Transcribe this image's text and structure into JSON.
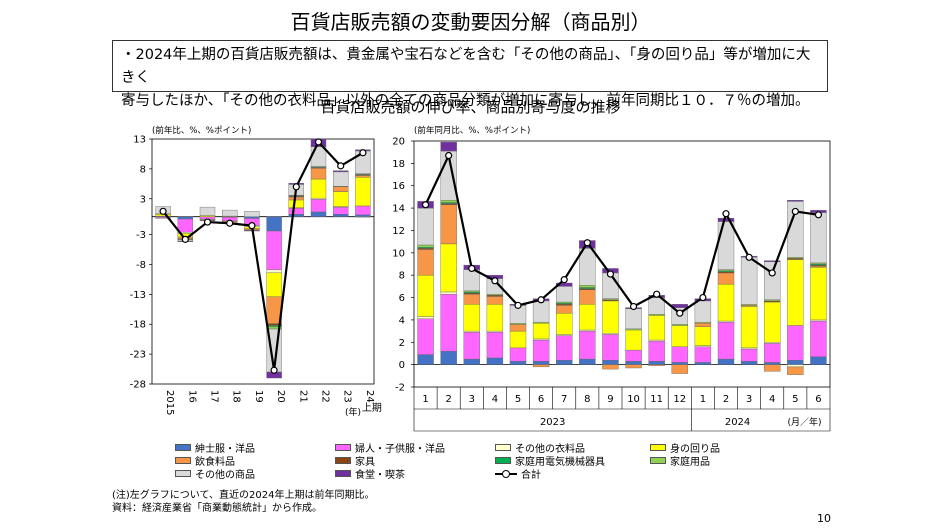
{
  "title": "百貨店販売額の変動要因分解（商品別）",
  "summary": {
    "line1": "・2024年上期の百貨店販売額は、貴金属や宝石などを含む「その他の商品」、「身の回り品」等が増加に大きく",
    "line2": "寄与したほか、「その他の衣料品」以外の全ての商品分類が増加に寄与し、前年同期比１０．７％の増加。"
  },
  "subtitle": "百貨店販売額の伸び率、商品別寄与度の推移",
  "colors": {
    "紳士服・洋品": "#4472c4",
    "婦人・子供服・洋品": "#ff66ff",
    "その他の衣料品": "#ffffcc",
    "身の回り品": "#ffff00",
    "飲食料品": "#f79646",
    "家具": "#8b4513",
    "家庭用電気機械器具": "#00b050",
    "家庭用品": "#92d050",
    "その他の商品": "#d9d9d9",
    "食堂・喫茶": "#7030a0"
  },
  "chart_data": [
    {
      "type": "bar",
      "stacked": true,
      "unit_label": "(前年比、%、%ポイント)",
      "ylim": [
        -28,
        13
      ],
      "yticks": [
        13,
        8,
        3,
        -3,
        -8,
        -13,
        -18,
        -23,
        -28
      ],
      "categories": [
        "2015",
        "16",
        "17",
        "18",
        "19",
        "20",
        "21",
        "22",
        "23",
        "24\n上期"
      ],
      "x_unit": "(年)",
      "series": [
        {
          "name": "紳士服・洋品",
          "values": [
            0.1,
            -0.4,
            0.0,
            -0.1,
            -0.3,
            -2.4,
            0.4,
            0.8,
            0.4,
            0.3
          ]
        },
        {
          "name": "婦人・子供服・洋品",
          "values": [
            -0.2,
            -2.2,
            -0.4,
            -0.6,
            -1.2,
            -6.5,
            1.0,
            2.1,
            1.2,
            1.5
          ]
        },
        {
          "name": "その他の衣料品",
          "values": [
            -0.1,
            -0.2,
            -0.1,
            -0.1,
            -0.2,
            -0.5,
            0.1,
            0.2,
            0.1,
            -0.1
          ]
        },
        {
          "name": "身の回り品",
          "values": [
            0.3,
            -0.6,
            0.2,
            0.1,
            -0.3,
            -4.0,
            1.3,
            3.2,
            2.5,
            4.8
          ]
        },
        {
          "name": "飲食料品",
          "values": [
            0.1,
            -0.3,
            -0.1,
            -0.3,
            -0.2,
            -4.5,
            0.5,
            1.8,
            0.8,
            0.3
          ]
        },
        {
          "name": "家具",
          "values": [
            0.0,
            -0.1,
            0.0,
            0.0,
            0.0,
            -0.3,
            0.1,
            0.1,
            0.0,
            0.1
          ]
        },
        {
          "name": "家庭用電気機械器具",
          "values": [
            0.0,
            0.0,
            0.0,
            0.0,
            0.0,
            -0.2,
            0.1,
            0.1,
            0.0,
            0.1
          ]
        },
        {
          "name": "家庭用品",
          "values": [
            0.0,
            -0.1,
            0.0,
            0.0,
            -0.1,
            -0.4,
            0.1,
            0.1,
            0.1,
            0.1
          ]
        },
        {
          "name": "その他の商品",
          "values": [
            1.2,
            -0.2,
            1.4,
            1.0,
            0.9,
            -7.2,
            1.8,
            3.3,
            2.4,
            3.8
          ]
        },
        {
          "name": "食堂・喫茶",
          "values": [
            0.0,
            -0.1,
            -0.1,
            0.0,
            -0.1,
            -1.0,
            0.2,
            1.3,
            0.2,
            0.2
          ]
        }
      ],
      "total": {
        "name": "合計",
        "values": [
          0.9,
          -3.8,
          -0.9,
          -1.1,
          -1.5,
          -25.7,
          5.0,
          12.5,
          8.5,
          10.7
        ]
      }
    },
    {
      "type": "bar",
      "stacked": true,
      "unit_label": "(前年同月比、%、%ポイント)",
      "ylim": [
        -2,
        20
      ],
      "yticks": [
        20,
        18,
        16,
        14,
        12,
        10,
        8,
        6,
        4,
        2,
        0,
        -2
      ],
      "categories": [
        "1",
        "2",
        "3",
        "4",
        "5",
        "6",
        "7",
        "8",
        "9",
        "10",
        "11",
        "12",
        "1",
        "2",
        "3",
        "4",
        "5",
        "6"
      ],
      "year_labels": [
        "2023",
        "2024"
      ],
      "month_unit": "(月／年)",
      "series": [
        {
          "name": "紳士服・洋品",
          "values": [
            0.9,
            1.2,
            0.5,
            0.6,
            0.3,
            0.3,
            0.4,
            0.5,
            0.4,
            0.3,
            0.3,
            0.2,
            0.2,
            0.5,
            0.3,
            0.2,
            0.4,
            0.7
          ]
        },
        {
          "name": "婦人・子供服・洋品",
          "values": [
            3.2,
            5.1,
            2.4,
            2.3,
            1.2,
            1.9,
            2.2,
            2.5,
            2.3,
            1.0,
            1.8,
            1.4,
            1.4,
            3.3,
            1.1,
            1.7,
            3.1,
            3.2
          ]
        },
        {
          "name": "その他の衣料品",
          "values": [
            0.2,
            0.2,
            0.1,
            0.1,
            0.0,
            0.1,
            0.1,
            0.1,
            0.1,
            0.0,
            0.1,
            0.0,
            0.1,
            0.1,
            0.1,
            0.1,
            -0.2,
            0.1
          ]
        },
        {
          "name": "身の回り品",
          "values": [
            3.7,
            4.3,
            2.4,
            2.4,
            1.5,
            1.4,
            1.9,
            2.3,
            2.9,
            1.8,
            2.2,
            1.9,
            1.7,
            3.3,
            3.7,
            3.6,
            5.9,
            4.7
          ]
        },
        {
          "name": "飲食料品",
          "values": [
            2.3,
            3.5,
            0.9,
            0.7,
            0.6,
            -0.2,
            0.7,
            1.3,
            -0.4,
            -0.3,
            -0.1,
            -0.8,
            0.3,
            1.0,
            0.1,
            -0.6,
            -0.7,
            0.1
          ]
        },
        {
          "name": "家具",
          "values": [
            0.1,
            0.1,
            0.1,
            0.1,
            0.0,
            0.0,
            0.1,
            0.1,
            0.1,
            0.0,
            0.0,
            0.0,
            0.0,
            0.1,
            0.0,
            0.1,
            0.1,
            0.1
          ]
        },
        {
          "name": "家庭用電気機械器具",
          "values": [
            0.1,
            0.1,
            0.1,
            0.0,
            0.0,
            0.0,
            0.1,
            0.1,
            0.0,
            0.0,
            0.0,
            0.0,
            0.0,
            0.1,
            0.0,
            0.0,
            0.0,
            0.1
          ]
        },
        {
          "name": "家庭用品",
          "values": [
            0.2,
            0.2,
            0.1,
            0.1,
            0.1,
            0.1,
            0.1,
            0.2,
            0.1,
            0.1,
            0.1,
            0.1,
            0.1,
            0.1,
            0.1,
            0.1,
            0.1,
            0.1
          ]
        },
        {
          "name": "その他の商品",
          "values": [
            3.3,
            4.4,
            1.9,
            1.4,
            1.6,
            1.9,
            1.4,
            3.3,
            2.3,
            1.8,
            1.5,
            1.5,
            1.9,
            4.3,
            4.2,
            3.4,
            5.0,
            4.5
          ]
        },
        {
          "name": "食堂・喫茶",
          "values": [
            0.6,
            0.8,
            0.4,
            0.3,
            0.1,
            0.2,
            0.3,
            0.7,
            0.4,
            0.1,
            0.2,
            0.3,
            0.2,
            0.3,
            0.1,
            0.1,
            0.1,
            0.2
          ]
        }
      ],
      "total": {
        "name": "合計",
        "values": [
          14.3,
          18.7,
          8.6,
          7.5,
          5.3,
          5.8,
          7.6,
          10.9,
          8.1,
          5.2,
          6.3,
          4.6,
          6.0,
          13.5,
          9.6,
          8.2,
          13.7,
          13.4
        ]
      }
    }
  ],
  "legend_items": [
    "紳士服・洋品",
    "婦人・子供服・洋品",
    "その他の衣料品",
    "身の回り品",
    "飲食料品",
    "家具",
    "家庭用電気機械器具",
    "家庭用品",
    "その他の商品",
    "食堂・喫茶",
    "合計"
  ],
  "note": {
    "line1": "(注)左グラフについて、直近の2024年上期は前年同期比。",
    "line2": "資料：経済産業省「商業動態統計」から作成。"
  },
  "page_number": "10"
}
